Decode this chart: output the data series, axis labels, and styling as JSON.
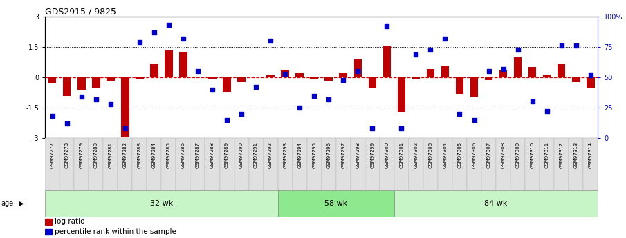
{
  "title": "GDS2915 / 9825",
  "samples": [
    "GSM97277",
    "GSM97278",
    "GSM97279",
    "GSM97280",
    "GSM97281",
    "GSM97282",
    "GSM97283",
    "GSM97284",
    "GSM97285",
    "GSM97286",
    "GSM97287",
    "GSM97288",
    "GSM97289",
    "GSM97290",
    "GSM97291",
    "GSM97292",
    "GSM97293",
    "GSM97294",
    "GSM97295",
    "GSM97296",
    "GSM97297",
    "GSM97298",
    "GSM97299",
    "GSM97300",
    "GSM97301",
    "GSM97302",
    "GSM97303",
    "GSM97304",
    "GSM97305",
    "GSM97306",
    "GSM97307",
    "GSM97308",
    "GSM97309",
    "GSM97310",
    "GSM97311",
    "GSM97312",
    "GSM97313",
    "GSM97314"
  ],
  "log_ratio": [
    -0.3,
    -0.9,
    -0.65,
    -0.5,
    -0.15,
    -2.95,
    -0.1,
    0.65,
    1.35,
    1.25,
    0.05,
    -0.05,
    -0.7,
    -0.25,
    0.05,
    0.15,
    0.35,
    0.2,
    -0.1,
    -0.15,
    0.22,
    0.9,
    -0.55,
    1.55,
    -1.7,
    -0.05,
    0.4,
    0.55,
    -0.8,
    -0.95,
    -0.12,
    0.35,
    1.0,
    0.5,
    0.15,
    0.65,
    -0.25,
    -0.5
  ],
  "percentile": [
    18,
    12,
    34,
    32,
    28,
    8,
    79,
    87,
    93,
    82,
    55,
    40,
    15,
    20,
    42,
    80,
    53,
    25,
    35,
    32,
    48,
    55,
    8,
    92,
    8,
    69,
    73,
    82,
    20,
    15,
    55,
    57,
    73,
    30,
    22,
    76,
    76,
    52
  ],
  "group_boundaries": [
    0,
    16,
    24,
    38
  ],
  "group_labels": [
    "32 wk",
    "58 wk",
    "84 wk"
  ],
  "group_colors_light": "#c8f5c8",
  "group_colors_dark": "#8ee88e",
  "bar_color": "#c00000",
  "dot_color": "#0000cc",
  "zero_line_color": "#dd0000",
  "dotted_line_color": "#000000",
  "background_color": "#ffffff",
  "plot_bg_color": "#ffffff",
  "ylim": [
    -3,
    3
  ],
  "yticks_left": [
    -3,
    -1.5,
    0,
    1.5,
    3
  ],
  "right_tick_positions": [
    -3,
    -1.5,
    0,
    1.5,
    3
  ],
  "right_tick_labels": [
    "0",
    "25",
    "50",
    "75",
    "100%"
  ]
}
